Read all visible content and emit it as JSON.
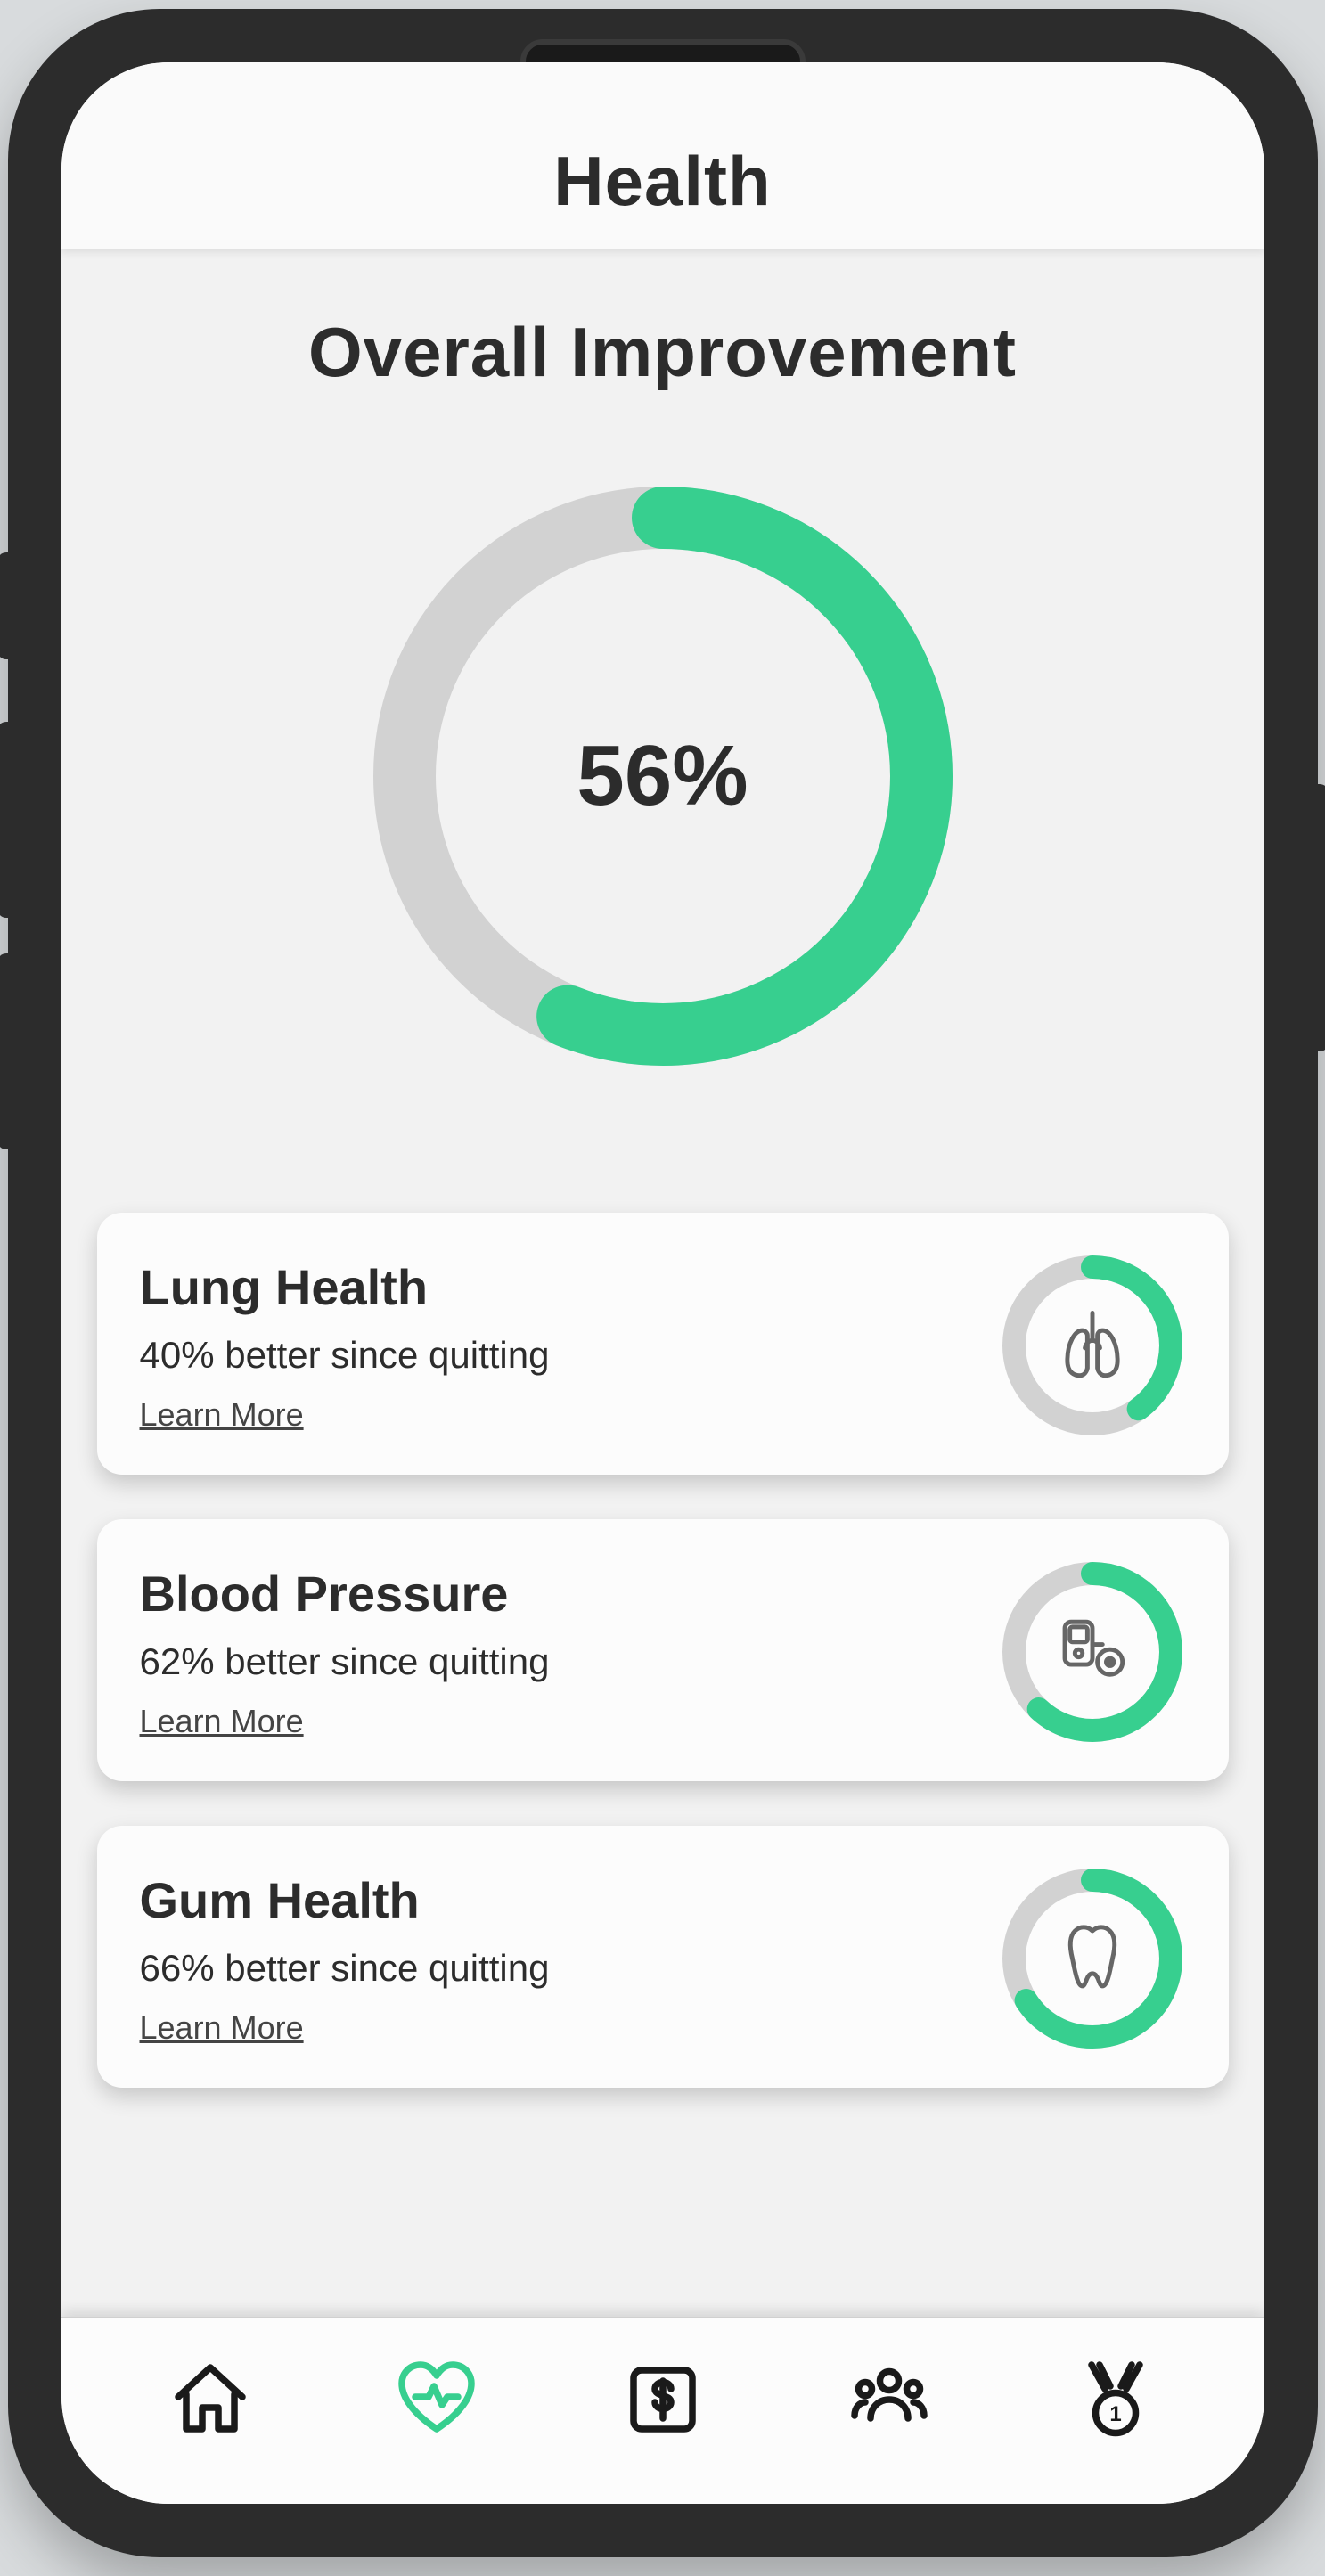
{
  "colors": {
    "accent": "#37cf8f",
    "ring_track": "#d2d2d2",
    "text": "#2c2c2c",
    "card_bg": "#fcfcfc",
    "screen_bg": "#f2f2f2",
    "icon_stroke": "#666666"
  },
  "header": {
    "title": "Health"
  },
  "overall": {
    "title": "Overall Improvement",
    "percent": 56,
    "percent_label": "56%",
    "ring": {
      "radius": 290,
      "stroke_width": 70,
      "track_color": "#d2d2d2",
      "progress_color": "#37cf8f"
    }
  },
  "cards": [
    {
      "id": "lung",
      "title": "Lung Health",
      "subtitle": "40% better since quitting",
      "link_label": "Learn More",
      "percent": 40,
      "icon": "lungs",
      "ring": {
        "radius": 88,
        "stroke_width": 26,
        "track_color": "#d2d2d2",
        "progress_color": "#37cf8f"
      }
    },
    {
      "id": "bp",
      "title": "Blood Pressure",
      "subtitle": "62% better since quitting",
      "link_label": "Learn More",
      "percent": 62,
      "icon": "bp-monitor",
      "ring": {
        "radius": 88,
        "stroke_width": 26,
        "track_color": "#d2d2d2",
        "progress_color": "#37cf8f"
      }
    },
    {
      "id": "gum",
      "title": "Gum Health",
      "subtitle": "66% better since quitting",
      "link_label": "Learn More",
      "percent": 66,
      "icon": "tooth",
      "ring": {
        "radius": 88,
        "stroke_width": 26,
        "track_color": "#d2d2d2",
        "progress_color": "#37cf8f"
      }
    }
  ],
  "nav": {
    "items": [
      {
        "id": "home",
        "icon": "home",
        "active": false
      },
      {
        "id": "health",
        "icon": "heart",
        "active": true
      },
      {
        "id": "money",
        "icon": "dollar",
        "active": false
      },
      {
        "id": "social",
        "icon": "people",
        "active": false
      },
      {
        "id": "awards",
        "icon": "medal",
        "active": false
      }
    ]
  }
}
